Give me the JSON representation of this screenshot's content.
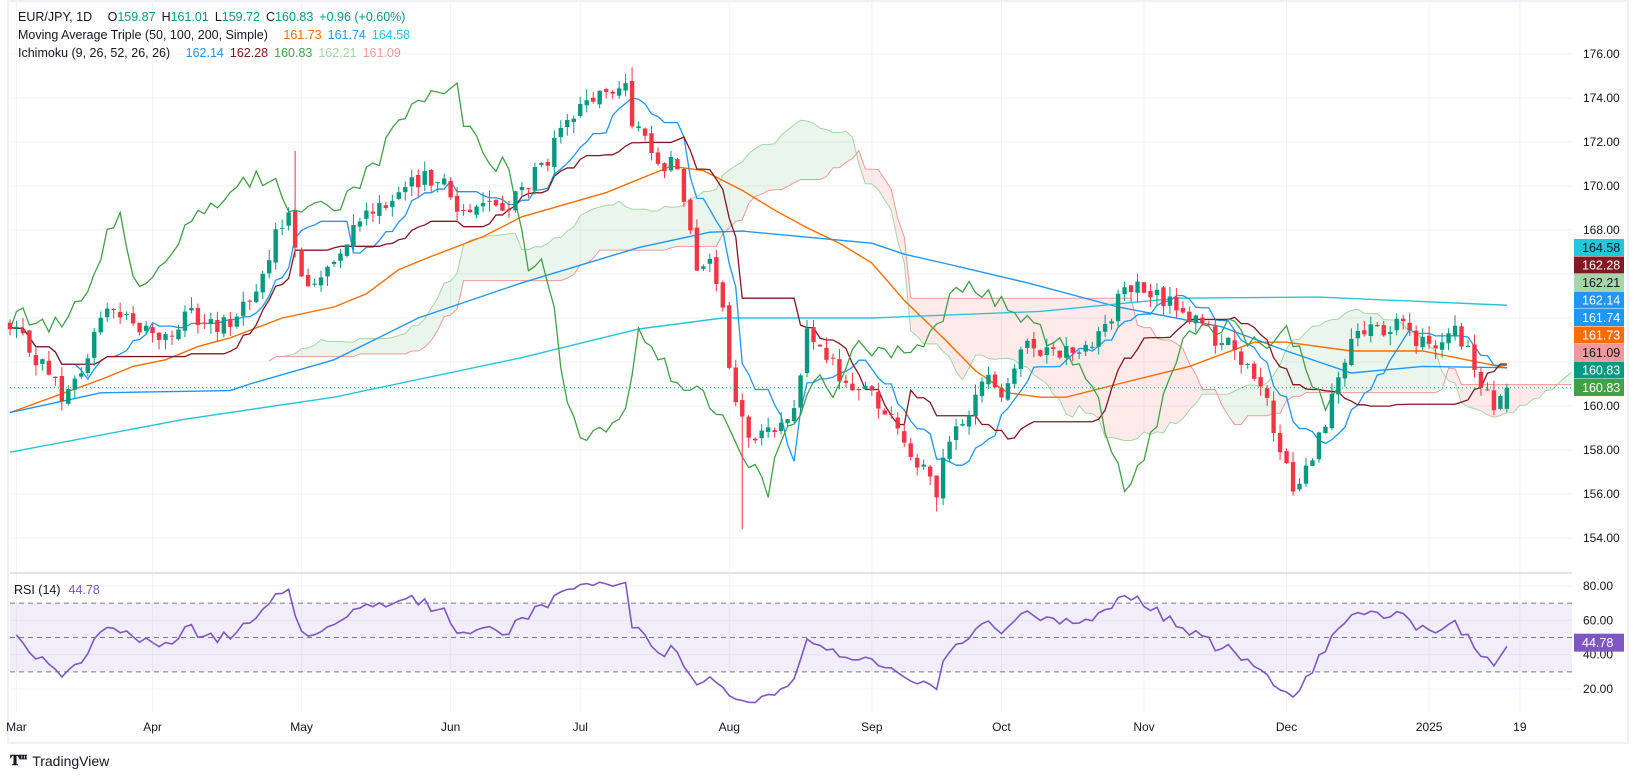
{
  "header": {
    "symbol": "EUR/JPY, 1D",
    "o_label": "O",
    "o_value": "159.87",
    "h_label": "H",
    "h_value": "161.01",
    "l_label": "L",
    "l_value": "159.72",
    "c_label": "C",
    "c_value": "160.83",
    "change": "+0.96 (+0.60%)"
  },
  "ma_legend": {
    "title": "Moving Average Triple (50, 100, 200, Simple)",
    "values": [
      "161.73",
      "161.74",
      "164.58"
    ]
  },
  "ichimoku_legend": {
    "title": "Ichimoku (9, 26, 52, 26, 26)",
    "values": [
      "162.14",
      "162.28",
      "160.83",
      "162.21",
      "161.09"
    ]
  },
  "rsi_legend": {
    "title": "RSI (14)",
    "value": "44.78"
  },
  "colors": {
    "up": "#089981",
    "down": "#F23645",
    "ma50": "#FF6D00",
    "ma100": "#2196F3",
    "ma200": "#26C6DA",
    "tenkan": "#2196F3",
    "kijun": "#801922",
    "chikou": "#43A047",
    "span_a": "#A5D6A7",
    "span_b": "#EF9A9A",
    "rsi": "#7E57C2"
  },
  "branding": "TradingView",
  "chart_data": {
    "type": "candlestick",
    "title": "EUR/JPY, 1D",
    "ylim": [
      153.5,
      177
    ],
    "price_ticks": [
      "176.00",
      "174.00",
      "172.00",
      "170.00",
      "168.00",
      "160.00",
      "158.00",
      "156.00",
      "154.00"
    ],
    "price_tick_values": [
      176,
      174,
      172,
      170,
      168,
      160,
      158,
      156,
      154
    ],
    "time_ticks": [
      {
        "label": "Mar",
        "day": 1
      },
      {
        "label": "Apr",
        "day": 22
      },
      {
        "label": "May",
        "day": 45
      },
      {
        "label": "Jun",
        "day": 68
      },
      {
        "label": "Jul",
        "day": 88
      },
      {
        "label": "Aug",
        "day": 111
      },
      {
        "label": "Sep",
        "day": 133
      },
      {
        "label": "Oct",
        "day": 153
      },
      {
        "label": "Nov",
        "day": 175
      },
      {
        "label": "Dec",
        "day": 197
      },
      {
        "label": "2025",
        "day": 219
      },
      {
        "label": "19",
        "day": 233
      }
    ],
    "close_keypoints": [
      [
        0,
        163.4
      ],
      [
        3,
        162.7
      ],
      [
        7,
        161.0
      ],
      [
        8,
        160.0
      ],
      [
        12,
        162.2
      ],
      [
        15,
        164.8
      ],
      [
        17,
        164.3
      ],
      [
        21,
        163.4
      ],
      [
        24,
        163.1
      ],
      [
        28,
        164.1
      ],
      [
        32,
        163.4
      ],
      [
        35,
        164.3
      ],
      [
        39,
        165.7
      ],
      [
        41,
        167.6
      ],
      [
        43,
        169.2
      ],
      [
        44,
        166.9
      ],
      [
        46,
        165.2
      ],
      [
        48,
        166.1
      ],
      [
        51,
        167.3
      ],
      [
        54,
        168.7
      ],
      [
        58,
        169.4
      ],
      [
        63,
        170.1
      ],
      [
        66,
        170.6
      ],
      [
        69,
        168.9
      ],
      [
        73,
        169.4
      ],
      [
        76,
        168.9
      ],
      [
        79,
        169.8
      ],
      [
        82,
        170.8
      ],
      [
        86,
        172.7
      ],
      [
        90,
        174.1
      ],
      [
        93,
        174.1
      ],
      [
        95,
        175.0
      ],
      [
        96,
        172.4
      ],
      [
        98,
        172.2
      ],
      [
        101,
        171.0
      ],
      [
        103,
        171.0
      ],
      [
        105,
        168.4
      ],
      [
        106,
        166.5
      ],
      [
        108,
        166.3
      ],
      [
        110,
        164.6
      ],
      [
        111,
        161.3
      ],
      [
        114,
        158.4
      ],
      [
        118,
        158.9
      ],
      [
        121,
        160.3
      ],
      [
        123,
        163.1
      ],
      [
        126,
        162.2
      ],
      [
        129,
        161.0
      ],
      [
        133,
        160.6
      ],
      [
        136,
        159.4
      ],
      [
        139,
        158.0
      ],
      [
        141,
        157.0
      ],
      [
        143,
        155.8
      ],
      [
        144,
        157.5
      ],
      [
        148,
        159.9
      ],
      [
        151,
        161.3
      ],
      [
        153,
        160.8
      ],
      [
        156,
        162.4
      ],
      [
        158,
        162.7
      ],
      [
        161,
        162.7
      ],
      [
        164,
        162.4
      ],
      [
        169,
        163.6
      ],
      [
        172,
        165.3
      ],
      [
        173,
        165.5
      ],
      [
        176,
        165.0
      ],
      [
        180,
        164.6
      ],
      [
        182,
        164.1
      ],
      [
        186,
        163.1
      ],
      [
        189,
        162.7
      ],
      [
        192,
        161.0
      ],
      [
        194,
        160.0
      ],
      [
        196,
        157.8
      ],
      [
        198,
        156.4
      ],
      [
        201,
        157.6
      ],
      [
        203,
        159.5
      ],
      [
        207,
        162.7
      ],
      [
        210,
        163.6
      ],
      [
        213,
        163.1
      ],
      [
        215,
        164.1
      ],
      [
        217,
        162.7
      ],
      [
        220,
        162.7
      ],
      [
        222,
        163.6
      ],
      [
        225,
        162.4
      ],
      [
        227,
        160.9
      ],
      [
        229,
        159.9
      ],
      [
        231,
        160.83
      ]
    ],
    "last_candle": {
      "open": 159.87,
      "high": 161.01,
      "low": 159.72,
      "close": 160.83
    },
    "notable_wicks": [
      {
        "day": 44,
        "high": 171.6
      },
      {
        "day": 96,
        "high": 175.4
      },
      {
        "day": 113,
        "low": 154.4
      },
      {
        "day": 143,
        "low": 155.2
      }
    ],
    "series": [
      {
        "name": "MA 50",
        "points": [
          [
            0,
            159.7
          ],
          [
            14,
            161.2
          ],
          [
            19,
            161.8
          ],
          [
            24,
            162.1
          ],
          [
            29,
            162.7
          ],
          [
            34,
            163.1
          ],
          [
            42,
            164.0
          ],
          [
            50,
            164.5
          ],
          [
            55,
            165.1
          ],
          [
            60,
            166.2
          ],
          [
            65,
            166.8
          ],
          [
            73,
            167.7
          ],
          [
            79,
            168.6
          ],
          [
            92,
            169.7
          ],
          [
            102,
            170.9
          ],
          [
            107,
            170.7
          ],
          [
            113,
            169.8
          ],
          [
            118,
            168.9
          ],
          [
            123,
            168.1
          ],
          [
            128,
            167.4
          ],
          [
            133,
            166.5
          ],
          [
            138,
            164.8
          ],
          [
            144,
            163.1
          ],
          [
            149,
            161.6
          ],
          [
            154,
            160.6
          ],
          [
            159,
            160.4
          ],
          [
            163,
            160.4
          ],
          [
            171,
            161.0
          ],
          [
            182,
            161.8
          ],
          [
            192,
            162.9
          ],
          [
            197,
            162.9
          ],
          [
            207,
            162.5
          ],
          [
            218,
            162.5
          ],
          [
            231,
            161.73
          ]
        ]
      },
      {
        "name": "MA 100",
        "points": [
          [
            0,
            159.7
          ],
          [
            14,
            160.6
          ],
          [
            34,
            160.7
          ],
          [
            37,
            161.0
          ],
          [
            50,
            162.1
          ],
          [
            63,
            164.0
          ],
          [
            79,
            165.6
          ],
          [
            97,
            167.2
          ],
          [
            108,
            167.9
          ],
          [
            113,
            167.95
          ],
          [
            133,
            167.4
          ],
          [
            138,
            166.9
          ],
          [
            144,
            166.5
          ],
          [
            157,
            165.6
          ],
          [
            171,
            164.5
          ],
          [
            187,
            163.6
          ],
          [
            197,
            162.5
          ],
          [
            207,
            161.5
          ],
          [
            218,
            161.8
          ],
          [
            231,
            161.74
          ]
        ]
      },
      {
        "name": "MA 200",
        "points": [
          [
            0,
            157.9
          ],
          [
            27,
            159.4
          ],
          [
            50,
            160.4
          ],
          [
            79,
            162.2
          ],
          [
            97,
            163.5
          ],
          [
            110,
            164.0
          ],
          [
            133,
            164.0
          ],
          [
            159,
            164.3
          ],
          [
            180,
            164.9
          ],
          [
            202,
            164.95
          ],
          [
            231,
            164.58
          ]
        ]
      }
    ],
    "rsi": {
      "period": 14,
      "ylim": [
        10,
        90
      ],
      "ticks": [
        "80.00",
        "60.00",
        "40.00",
        "20.00"
      ],
      "tick_values": [
        80,
        60,
        40,
        20
      ],
      "bands": [
        70,
        50,
        30
      ],
      "last": 44.78
    }
  }
}
